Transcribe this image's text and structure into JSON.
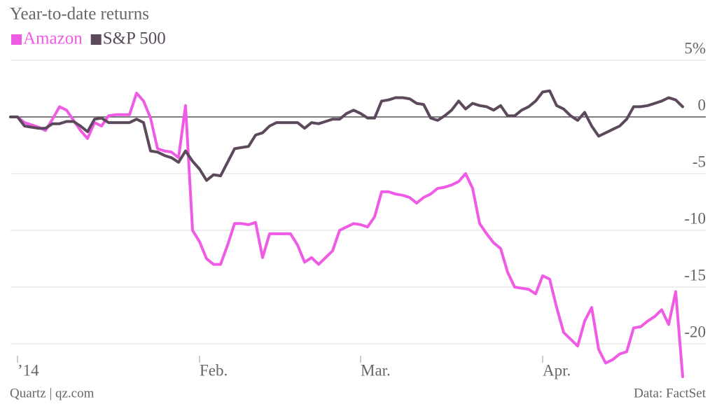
{
  "chart_data": {
    "type": "line",
    "title": "Year-to-date returns",
    "categories": [
      null,
      "’14",
      null,
      null,
      null,
      null,
      null,
      null,
      null,
      null,
      null,
      null,
      null,
      null,
      null,
      null,
      null,
      null,
      null,
      null,
      null,
      null,
      null,
      null,
      null,
      null,
      null,
      "Feb.",
      null,
      null,
      null,
      null,
      null,
      null,
      null,
      null,
      null,
      null,
      null,
      null,
      null,
      null,
      null,
      null,
      null,
      null,
      null,
      null,
      null,
      null,
      "Mar.",
      null,
      null,
      null,
      null,
      null,
      null,
      null,
      null,
      null,
      null,
      null,
      null,
      null,
      null,
      null,
      null,
      null,
      null,
      null,
      null,
      null,
      null,
      null,
      null,
      null,
      "Apr.",
      null,
      null,
      null,
      null,
      null,
      null,
      null,
      null,
      null,
      null,
      null,
      null,
      null,
      null,
      null,
      null,
      null,
      null,
      null,
      null
    ],
    "series": [
      {
        "name": "Amazon",
        "color": "#f05be6",
        "values": [
          0,
          0,
          -0.5,
          -0.7,
          -0.9,
          -1.2,
          -0.2,
          0.9,
          0.6,
          -0.3,
          -1.2,
          -1.9,
          -0.5,
          -0.8,
          0.1,
          0.2,
          0.2,
          0.2,
          2.1,
          1.4,
          -0.1,
          -2.8,
          -3.0,
          -3.1,
          -3.6,
          1.0,
          -10.0,
          -11.0,
          -12.5,
          -13.0,
          -13.0,
          -11.3,
          -9.4,
          -9.4,
          -9.5,
          -9.3,
          -12.4,
          -10.3,
          -10.3,
          -10.3,
          -10.3,
          -11.3,
          -12.8,
          -12.4,
          -13.0,
          -12.4,
          -11.8,
          -10.0,
          -9.7,
          -9.4,
          -9.5,
          -9.7,
          -8.8,
          -6.6,
          -6.6,
          -6.8,
          -6.9,
          -7.1,
          -7.6,
          -7.1,
          -6.8,
          -6.3,
          -6.2,
          -6.0,
          -5.7,
          -5.0,
          -6.3,
          -9.4,
          -10.3,
          -11.1,
          -11.6,
          -13.7,
          -15.0,
          -15.1,
          -15.2,
          -15.6,
          -14.0,
          -14.3,
          -16.8,
          -19.0,
          -19.6,
          -20.2,
          -18.0,
          -16.8,
          -20.5,
          -21.7,
          -21.4,
          -20.9,
          -20.7,
          -18.6,
          -18.5,
          -18.0,
          -17.6,
          -17.0,
          -18.3,
          -15.4,
          -22.9
        ]
      },
      {
        "name": "S&P 500",
        "color": "#5c4a5c",
        "values": [
          0,
          0,
          -0.8,
          -0.9,
          -1.0,
          -1.0,
          -0.6,
          -0.6,
          -0.4,
          -0.4,
          -0.8,
          -1.3,
          -0.2,
          -0.1,
          -0.5,
          -0.5,
          -0.5,
          -0.5,
          -0.2,
          -0.5,
          -3.0,
          -3.1,
          -3.4,
          -3.6,
          -4.0,
          -3.0,
          -3.9,
          -4.6,
          -5.6,
          -5.1,
          -5.2,
          -4.0,
          -2.8,
          -2.7,
          -2.6,
          -1.6,
          -1.4,
          -0.8,
          -0.5,
          -0.5,
          -0.5,
          -0.5,
          -1.0,
          -0.5,
          -0.6,
          -0.4,
          -0.2,
          -0.2,
          0.3,
          0.6,
          0.3,
          -0.1,
          -0.1,
          1.4,
          1.5,
          1.7,
          1.7,
          1.6,
          1.2,
          1.1,
          -0.1,
          -0.3,
          0.1,
          0.6,
          1.4,
          0.7,
          1.2,
          1.0,
          0.9,
          0.6,
          1.0,
          0.1,
          0.1,
          0.6,
          0.9,
          1.4,
          2.2,
          2.3,
          1.0,
          0.7,
          0.1,
          -0.3,
          0.4,
          -0.8,
          -1.7,
          -1.4,
          -1.1,
          -0.8,
          -0.2,
          0.9,
          0.9,
          1.0,
          1.2,
          1.4,
          1.7,
          1.5,
          0.9
        ]
      }
    ],
    "ylim": [
      -23,
      5
    ],
    "yticks": [
      {
        "value": 5,
        "label": "5%"
      },
      0,
      -5,
      -10,
      -15,
      -20
    ],
    "grid": true,
    "source": "Quartz | qz.com",
    "credit": "Data: FactSet"
  }
}
